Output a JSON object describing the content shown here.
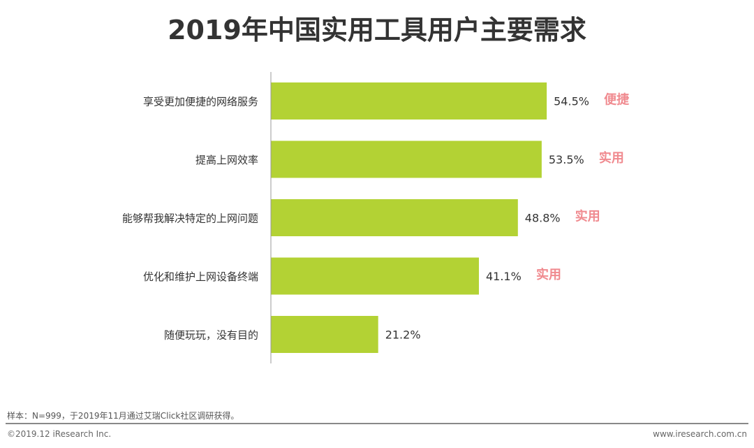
{
  "chart_data": {
    "type": "bar",
    "orientation": "horizontal",
    "title": "2019年中国实用工具用户主要需求",
    "categories": [
      "享受更加便捷的网络服务",
      "提高上网效率",
      "能够帮我解决特定的上网问题",
      "优化和维护上网设备终端",
      "随便玩玩，没有目的"
    ],
    "values": [
      54.5,
      53.5,
      48.8,
      41.1,
      21.2
    ],
    "value_labels": [
      "54.5%",
      "53.5%",
      "48.8%",
      "41.1%",
      "21.2%"
    ],
    "annotations": [
      "便捷",
      "实用",
      "实用",
      "实用",
      ""
    ],
    "unit": "%",
    "grid": false,
    "colors": {
      "bar": "#b3d234",
      "annotation": "#f08a8f",
      "text": "#333333"
    }
  },
  "footer": {
    "note": "样本：N=999，于2019年11月通过艾瑞Click社区调研获得。",
    "copyright": "©2019.12 iResearch Inc.",
    "website": "www.iresearch.com.cn"
  }
}
